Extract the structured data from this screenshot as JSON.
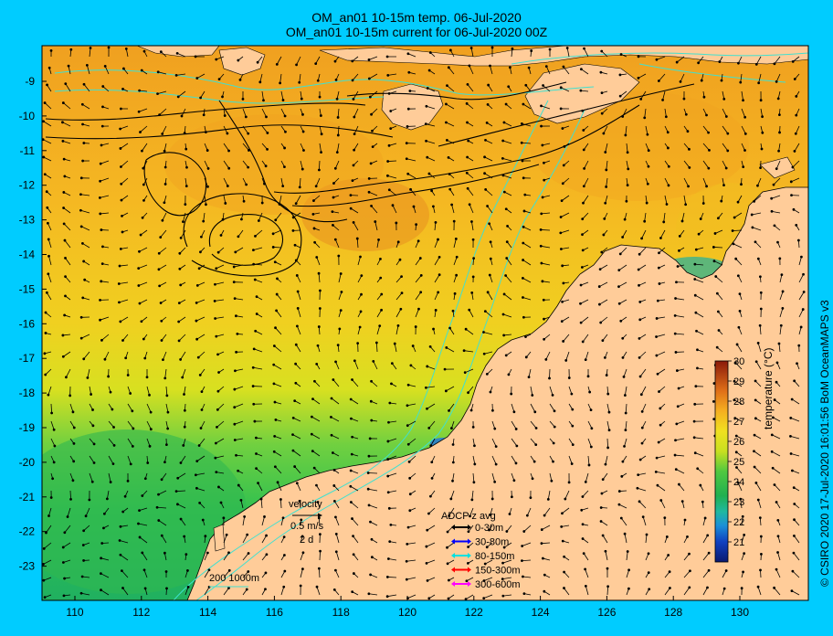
{
  "title_line1": "OM_an01 10-15m temp. 06-Jul-2020",
  "title_line2": "OM_an01 10-15m current for 06-Jul-2020 00Z",
  "credit": "© CSIRO 2020   17-Jul-2020 16:01:56 BoM OceanMAPS v3",
  "x_axis_labels": [
    "110",
    "112",
    "114",
    "116",
    "118",
    "120",
    "122",
    "124",
    "126",
    "128",
    "130"
  ],
  "y_axis_labels": [
    "-9",
    "-10",
    "-11",
    "-12",
    "-13",
    "-14",
    "-15",
    "-16",
    "-17",
    "-18",
    "-19",
    "-20",
    "-21",
    "-22",
    "-23"
  ],
  "colorbar": {
    "label": "temperature (°C)",
    "ticks": [
      "21",
      "22",
      "23",
      "24",
      "25",
      "26",
      "27",
      "28",
      "29",
      "30"
    ]
  },
  "velocity_legend": {
    "title": "velocity",
    "speed": "0.5 m/s",
    "duration": "2 d"
  },
  "adcp_legend": {
    "title": "ADCP z avg",
    "items": [
      {
        "label": "0-30m",
        "color": "#000000"
      },
      {
        "label": "30-80m",
        "color": "#0000ff"
      },
      {
        "label": "80-150m",
        "color": "#00e0e0"
      },
      {
        "label": "150-300m",
        "color": "#ff0000"
      },
      {
        "label": "300-600m",
        "color": "#ff00ff"
      }
    ]
  },
  "isobath_legend": "200  1000m",
  "colors": {
    "background": "#00ccff",
    "land": "#ffcc99",
    "isobath": "#40e0d0"
  }
}
